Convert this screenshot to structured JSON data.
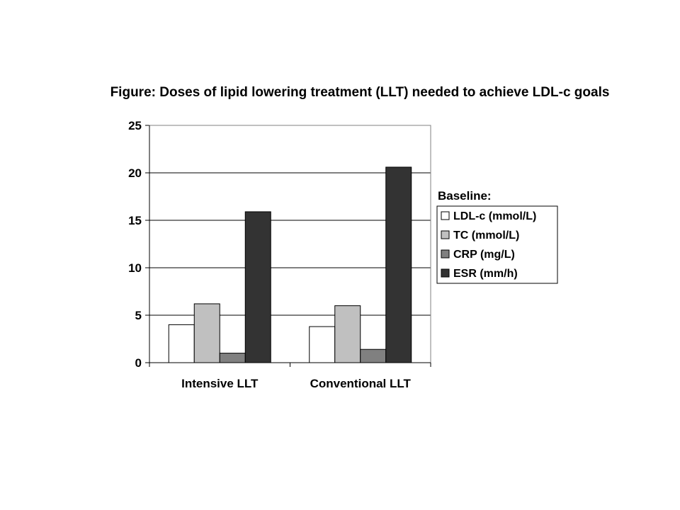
{
  "chart_data": {
    "type": "bar",
    "title": "Figure: Doses of lipid lowering treatment (LLT) needed to achieve LDL-c goals",
    "categories": [
      "Intensive LLT",
      "Conventional LLT"
    ],
    "series": [
      {
        "name": "LDL-c (mmol/L)",
        "values": [
          4.0,
          3.8
        ],
        "color": "#ffffff"
      },
      {
        "name": "TC (mmol/L)",
        "values": [
          6.2,
          6.0
        ],
        "color": "#c0c0c0"
      },
      {
        "name": "CRP (mg/L)",
        "values": [
          1.0,
          1.4
        ],
        "color": "#808080"
      },
      {
        "name": "ESR (mm/h)",
        "values": [
          15.9,
          20.6
        ],
        "color": "#333333"
      }
    ],
    "xlabel": "",
    "ylabel": "",
    "ylim": [
      0,
      25
    ],
    "yticks": [
      0,
      5,
      10,
      15,
      20,
      25
    ],
    "grid": true,
    "legend": {
      "title": "Baseline:",
      "position": "right"
    }
  }
}
